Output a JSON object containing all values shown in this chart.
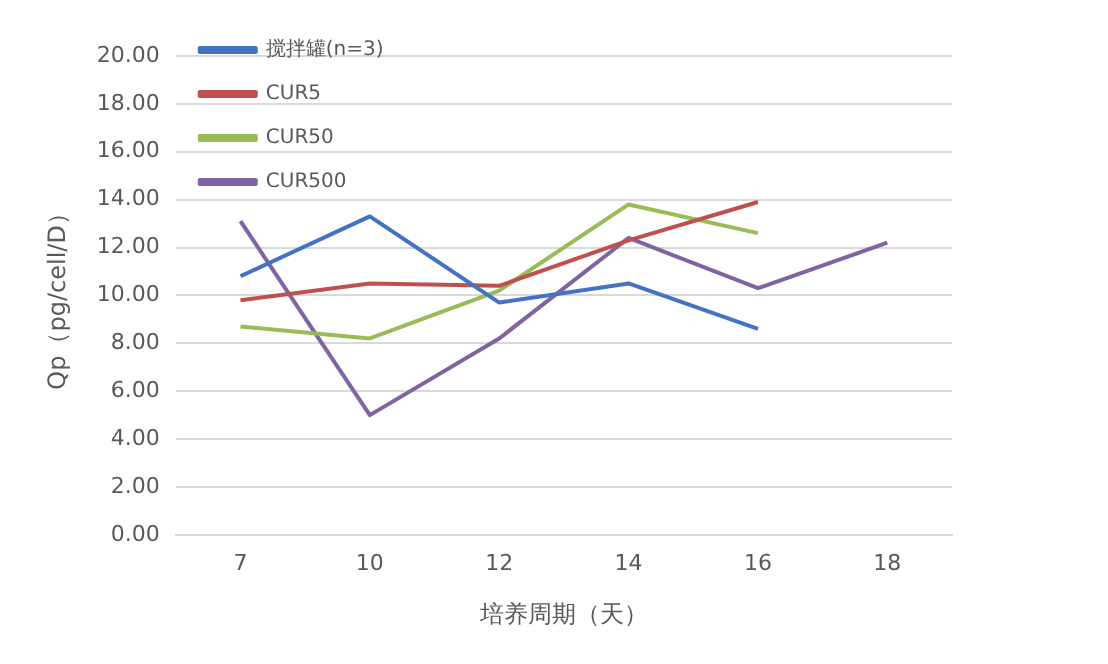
{
  "chart_data": {
    "type": "line",
    "xlabel": "培养周期（天）",
    "ylabel": "Qp（pg/cell/D）",
    "categories": [
      "7",
      "10",
      "12",
      "14",
      "16",
      "18"
    ],
    "series": [
      {
        "name": "搅拌罐(n=3)",
        "color": "#4472c4",
        "values": [
          10.8,
          13.3,
          9.7,
          10.5,
          8.6,
          null
        ]
      },
      {
        "name": "CUR5",
        "color": "#c0504d",
        "values": [
          9.8,
          10.5,
          10.4,
          12.3,
          13.9,
          null
        ]
      },
      {
        "name": "CUR50",
        "color": "#9bbb59",
        "values": [
          8.7,
          8.2,
          10.2,
          13.8,
          12.6,
          null
        ]
      },
      {
        "name": "CUR500",
        "color": "#8064a2",
        "values": [
          13.1,
          5.0,
          8.2,
          12.4,
          10.3,
          12.2
        ]
      }
    ],
    "ylim": [
      0,
      20
    ],
    "yticks": [
      {
        "value": 0,
        "label": "0.00"
      },
      {
        "value": 2,
        "label": "2.00"
      },
      {
        "value": 4,
        "label": "4.00"
      },
      {
        "value": 6,
        "label": "6.00"
      },
      {
        "value": 8,
        "label": "8.00"
      },
      {
        "value": 10,
        "label": "10.00"
      },
      {
        "value": 12,
        "label": "12.00"
      },
      {
        "value": 14,
        "label": "14.00"
      },
      {
        "value": 16,
        "label": "16.00"
      },
      {
        "value": 18,
        "label": "18.00"
      },
      {
        "value": 20,
        "label": "20.00"
      }
    ],
    "grid": "y",
    "legend": "top left",
    "marker": "none",
    "line_style": "solid"
  }
}
